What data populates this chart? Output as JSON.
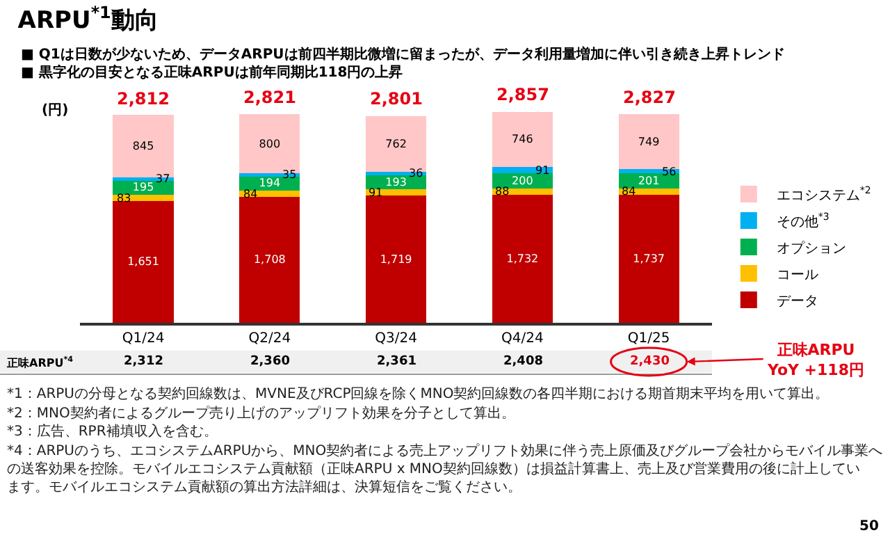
{
  "chart_data": {
    "type": "bar",
    "stacked": true,
    "title": "ARPU$^{*1}$動向",
    "subtitle": "■ Q1は日数が少ないため、データARPUは前四半期比微増に留まったが、データ利用量増加に伴い引き続き上昇トレンド\n■ 黒字化の目安となる正味ARPUは前年同期比118円の上昇",
    "ylabel": "(円)",
    "categories": [
      "Q1/24",
      "Q2/24",
      "Q3/24",
      "Q4/24",
      "Q1/25"
    ],
    "series": [
      {
        "name": "データ",
        "color": "#c00000",
        "values": [
          1651,
          1708,
          1719,
          1732,
          1737
        ],
        "value_labels": [
          "1,651",
          "1,708",
          "1,719",
          "1,732",
          "1,737"
        ]
      },
      {
        "name": "コール",
        "color": "#ffc000",
        "values": [
          83,
          84,
          91,
          88,
          84
        ]
      },
      {
        "name": "オプション",
        "color": "#00b050",
        "values": [
          195,
          194,
          193,
          200,
          201
        ]
      },
      {
        "name": "その他$^{*3}$",
        "color": "#00b0f0",
        "values": [
          37,
          35,
          36,
          91,
          56
        ]
      },
      {
        "name": "エコシステム$^{*2}$",
        "color": "#ffc7c7",
        "values": [
          845,
          800,
          762,
          746,
          749
        ]
      }
    ],
    "totals": [
      "2,812",
      "2,821",
      "2,801",
      "2,857",
      "2,827"
    ],
    "ylim": [
      0,
      2900
    ],
    "tick_labels": "x",
    "data_labels": true,
    "legend": "right",
    "annotations": [
      "正味ARPU$^{*4}$",
      "2,312",
      "2,360",
      "2,361",
      "2,408",
      "2,430",
      "正味ARPU\nYoY +118円",
      "*1：ARPUの分母となる契約回線数は、MVNE及びRCP回線を除くMNO契約回線数の各四半期における期首期末平均を用いて算出。",
      "*2：MNO契約者によるグループ売り上げのアップリフト効果を分子として算出。",
      "*3：広告、RPR補填収入を含む。",
      "*4：ARPUのうち、エコシステムARPUから、MNO契約者による売上アップリフト効果に伴う売上原価及びグループ会社からモバイル事業への送客効果を控除。モバイルエコシステム貢献額（正味ARPU x MNO契約回線数）は損益計算書上、売上及び営業費用の後に計上しています。モバイルエコシステム貢献額の算出方法詳細は、決算短信をご覧ください。",
      "50"
    ]
  }
}
